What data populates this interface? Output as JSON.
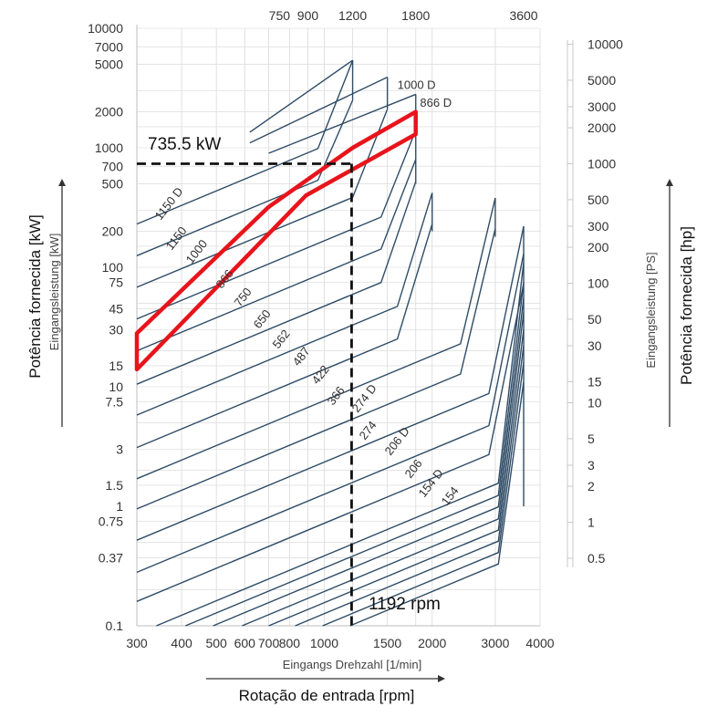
{
  "chart_data": {
    "type": "line",
    "x_scale": "log",
    "y_scale": "log",
    "xlim": [
      300,
      4000
    ],
    "ylim": [
      0.1,
      10000
    ],
    "x_ticks": [
      "300",
      "400",
      "500",
      "600",
      "700",
      "800",
      "1000",
      "1500",
      "2000",
      "3000",
      "4000"
    ],
    "x_tick_values": [
      300,
      400,
      500,
      600,
      700,
      800,
      1000,
      1500,
      2000,
      3000,
      4000
    ],
    "top_ticks": [
      "750",
      "900",
      "1200",
      "1800",
      "3600"
    ],
    "top_tick_values": [
      750,
      900,
      1200,
      1800,
      3600
    ],
    "y_left_ticks": [
      "10000",
      "7000",
      "5000",
      "2000",
      "1000",
      "700",
      "500",
      "200",
      "100",
      "75",
      "45",
      "30",
      "15",
      "10",
      "7.5",
      "3",
      "1.5",
      "1",
      "0.75",
      "0.37",
      "0.1"
    ],
    "y_left_values": [
      10000,
      7000,
      5000,
      2000,
      1000,
      700,
      500,
      200,
      100,
      75,
      45,
      30,
      15,
      10,
      7.5,
      3,
      1.5,
      1,
      0.75,
      0.37,
      0.1
    ],
    "y_right_ticks": [
      "10000",
      "5000",
      "3000",
      "2000",
      "1000",
      "500",
      "300",
      "200",
      "100",
      "50",
      "30",
      "15",
      "10",
      "5",
      "3",
      "2",
      "1",
      "0.5"
    ],
    "y_right_values": [
      10000,
      5000,
      3000,
      2000,
      1000,
      500,
      300,
      200,
      100,
      50,
      30,
      15,
      10,
      5,
      3,
      2,
      1,
      0.5
    ],
    "xlabel_de": "Eingangs Drehzahl [1/min]",
    "xlabel_pt": "Rotação de entrada [rpm]",
    "ylabel_left_de": "Eingangsleistung [kW]",
    "ylabel_left_pt": "Potência fornecida [kW]",
    "ylabel_right_de": "Eingangsleistung [PS]",
    "ylabel_right_pt": "Potência fornecida [hp]",
    "series": [
      {
        "name": "1150 D",
        "y300": 230,
        "end_x": 1200,
        "cap_y": 5400,
        "cap_x": 1200,
        "drop_y": 2500
      },
      {
        "name": "1150",
        "y300": 125,
        "end_x": 1200,
        "cap_y": 2500
      },
      {
        "name": "1000 D",
        "end_x": 1500,
        "cap_y": 3900,
        "drop_y": 2100,
        "label_x": 1600,
        "label_y": 3400
      },
      {
        "name": "1000",
        "y300": 68,
        "end_x": 1500,
        "cap_y": 2100
      },
      {
        "name": "866 D",
        "end_x": 1800,
        "cap_y": 2800,
        "drop_y": 1400,
        "label_x": 1850,
        "label_y": 2400
      },
      {
        "name": "866",
        "y300": 37,
        "end_x": 1800,
        "cap_y": 1400
      },
      {
        "name": "750",
        "y300": 20,
        "end_x": 1800,
        "cap_y": 800
      },
      {
        "name": "650",
        "y300": 10.5,
        "end_x": 1800,
        "cap_y": 520
      },
      {
        "name": "562",
        "y300": 5.8,
        "end_x": 2000,
        "cap_y": 420
      },
      {
        "name": "487",
        "y300": 3.1,
        "end_x": 2000,
        "cap_y": 230
      },
      {
        "name": "422",
        "y300": 1.7,
        "end_x": 3000,
        "cap_y": 380
      },
      {
        "name": "366",
        "y300": 0.95,
        "end_x": 3000,
        "cap_y": 210
      },
      {
        "name": "274 D",
        "y300": 0.52,
        "end_x": 3600,
        "cap_y": 220
      },
      {
        "name": "274",
        "y300": 0.28,
        "end_x": 3600,
        "cap_y": 130
      },
      {
        "name": "206 D",
        "y300": 0.16,
        "end_x": 3600,
        "cap_y": 73
      },
      {
        "name": "206",
        "end_x": 3600,
        "cap_y": 42
      },
      {
        "name": "154 D",
        "end_x": 3600,
        "cap_y": 25
      },
      {
        "name": "154",
        "end_x": 3600,
        "cap_y": 14
      }
    ],
    "highlight": {
      "name": "866 / 866 D",
      "color": "#e8141c",
      "upper": [
        [
          300,
          28
        ],
        [
          700,
          320
        ],
        [
          1200,
          1000
        ],
        [
          1800,
          2000
        ]
      ],
      "lower": [
        [
          300,
          14
        ],
        [
          890,
          400
        ],
        [
          1800,
          1300
        ]
      ]
    },
    "annotations": [
      {
        "text": "735.5 kW",
        "x": 1192,
        "y": 735.5
      },
      {
        "text": "1192 rpm",
        "x": 1192,
        "y": 0.1
      }
    ],
    "grid": true
  }
}
